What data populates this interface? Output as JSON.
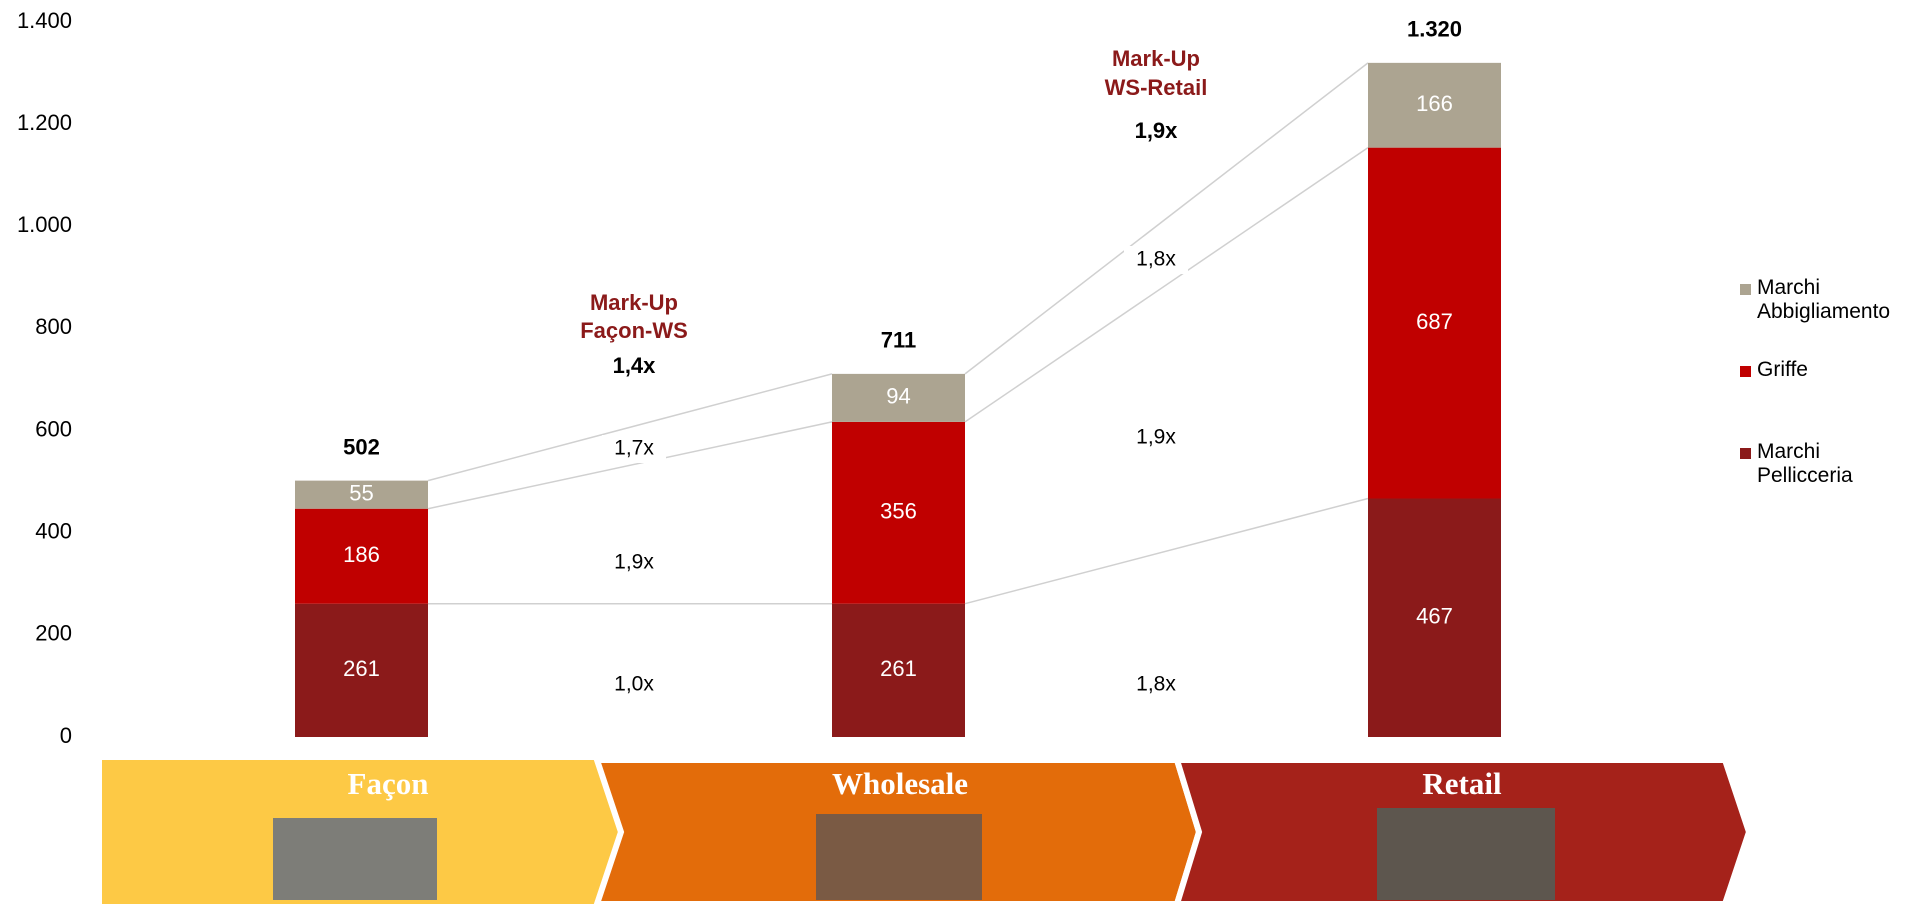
{
  "chart_data": {
    "type": "stacked_bar",
    "categories": [
      "Façon",
      "Wholesale",
      "Retail"
    ],
    "series": [
      {
        "name": "Marchi Pellicceria",
        "color": "#8b1a1a",
        "values": [
          261,
          261,
          467
        ]
      },
      {
        "name": "Griffe",
        "color": "#c00000",
        "values": [
          186,
          356,
          687
        ]
      },
      {
        "name": "Marchi Abbigliamento",
        "color": "#aca491",
        "values": [
          55,
          94,
          166
        ]
      }
    ],
    "totals": {
      "values": [
        502,
        711,
        1320
      ],
      "value_labels": [
        "502",
        "711",
        "1.320"
      ]
    },
    "ylim": [
      0,
      1400
    ],
    "yticks": [
      0,
      200,
      400,
      600,
      800,
      {
        "value": 1000,
        "label": "1.000"
      },
      {
        "value": 1200,
        "label": "1.200"
      },
      {
        "value": 1400,
        "label": "1.400"
      }
    ],
    "markups": [
      {
        "title": [
          "Mark-Up",
          "Façon-WS"
        ],
        "value": "1,4x",
        "ratios": [
          "1,0x",
          "1,9x",
          "1,7x"
        ]
      },
      {
        "title": [
          "Mark-Up",
          "WS-Retail"
        ],
        "value": "1,9x",
        "ratios": [
          "1,8x",
          "1,9x",
          "1,8x"
        ]
      }
    ],
    "legend": "right"
  }
}
